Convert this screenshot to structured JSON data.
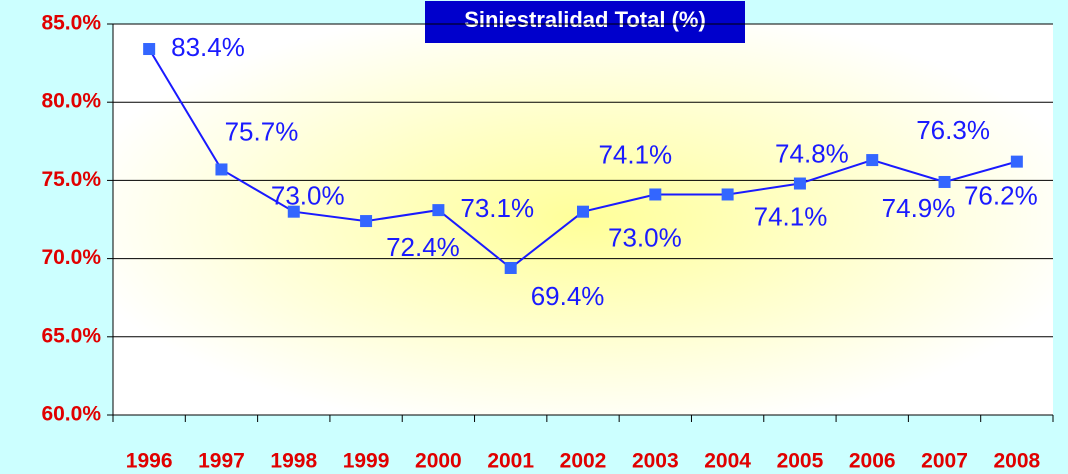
{
  "chart_data": {
    "type": "line",
    "title": "Siniestralidad Total (%)",
    "categories": [
      "1996",
      "1997",
      "1998",
      "1999",
      "2000",
      "2001",
      "2002",
      "2003",
      "2004",
      "2005",
      "2006",
      "2007",
      "2008"
    ],
    "series": [
      {
        "name": "Siniestralidad Total",
        "color": "#1a1aff",
        "marker_color": "#3366ff",
        "values": [
          83.4,
          75.7,
          73.0,
          72.4,
          73.1,
          69.4,
          73.0,
          74.1,
          74.1,
          74.8,
          76.3,
          74.9,
          76.2
        ],
        "value_labels": [
          "83.4%",
          "75.7%",
          "73.0%",
          "72.4%",
          "73.1%",
          "69.4%",
          "73.0%",
          "74.1%",
          "74.1%",
          "74.8%",
          "76.3%",
          "74.9%",
          "76.2%"
        ]
      }
    ],
    "ylim": [
      60,
      85
    ],
    "yticks": [
      {
        "value": 60,
        "label": "60.0%"
      },
      {
        "value": 65,
        "label": "65.0%"
      },
      {
        "value": 70,
        "label": "70.0%"
      },
      {
        "value": 75,
        "label": "75.0%"
      },
      {
        "value": 80,
        "label": "80.0%"
      },
      {
        "value": 85,
        "label": "85.0%"
      }
    ],
    "grid": true
  }
}
